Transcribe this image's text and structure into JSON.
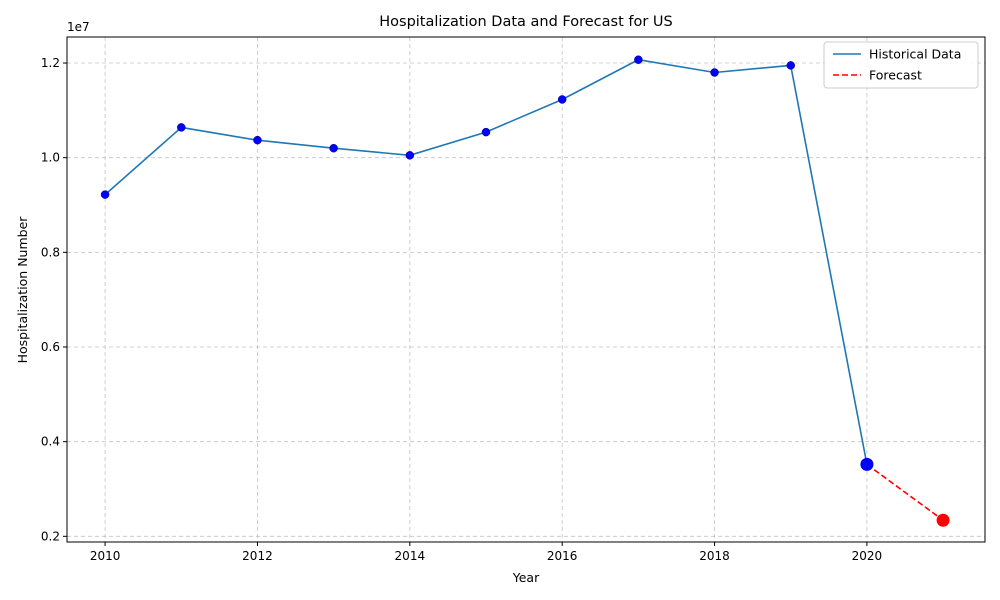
{
  "chart_data": {
    "type": "line",
    "title": "Hospitalization Data and Forecast for US",
    "xlabel": "Year",
    "ylabel": "Hospitalization Number",
    "y_offset_label": "1e7",
    "x_ticks": [
      "2010",
      "2012",
      "2014",
      "2016",
      "2018",
      "2020"
    ],
    "y_ticks": [
      "0.2",
      "0.4",
      "0.6",
      "0.8",
      "1.0",
      "1.2"
    ],
    "xlim": [
      2009.5,
      2021.55
    ],
    "ylim": [
      1880000,
      12550000
    ],
    "grid": true,
    "legend_position": "top-right",
    "series": [
      {
        "name": "Historical Data",
        "color": "#1f77b4",
        "line_style": "solid",
        "marker_color": "#0000ff",
        "x": [
          2010,
          2011,
          2012,
          2013,
          2014,
          2015,
          2016,
          2017,
          2018,
          2019,
          2020
        ],
        "y": [
          9220000,
          10640000,
          10370000,
          10200000,
          10050000,
          10540000,
          11230000,
          12070000,
          11800000,
          11950000,
          3520000
        ]
      },
      {
        "name": "Forecast",
        "color": "#ff0000",
        "line_style": "dashed",
        "x": [
          2020,
          2021
        ],
        "y": [
          3520000,
          2340000
        ]
      }
    ],
    "highlight_points": [
      {
        "x": 2020,
        "y": 3520000,
        "color": "#0000ff"
      },
      {
        "x": 2021,
        "y": 2340000,
        "color": "#ff0000"
      }
    ]
  }
}
